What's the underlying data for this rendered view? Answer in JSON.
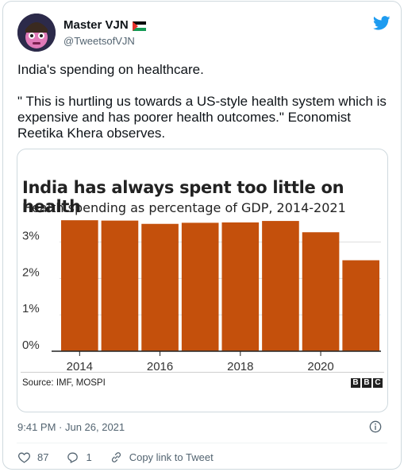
{
  "author": {
    "name": "Master VJN",
    "handle": "@TweetsofVJN"
  },
  "tweet": {
    "text": "India's spending on healthcare.\n\n\" This is hurtling us towards a US-style health system which is expensive and has poorer health outcomes.\" Economist Reetika Khera observes.",
    "timestamp": "9:41 PM · Jun 26, 2021"
  },
  "actions": {
    "likes": "87",
    "replies": "1",
    "copy_link": "Copy link to Tweet"
  },
  "chart_source": "Source: IMF, MOSPI",
  "chart_logo": [
    "B",
    "B",
    "C"
  ],
  "colors": {
    "bar": "#c4500c",
    "twitter_blue": "#1d9bf0"
  },
  "chart_data": {
    "type": "bar",
    "title": "India has always spent too little on health",
    "subtitle": "Health spending as percentage of GDP, 2014-2021",
    "categories": [
      "2014",
      "2015",
      "2016",
      "2017",
      "2018",
      "2019",
      "2020",
      "2021"
    ],
    "values": [
      3.6,
      3.59,
      3.5,
      3.53,
      3.54,
      3.58,
      3.27,
      2.5
    ],
    "y_ticks": [
      "0%",
      "1%",
      "2%",
      "3%"
    ],
    "x_ticks": [
      "2014",
      "2016",
      "2018",
      "2020"
    ],
    "ylim": [
      0,
      3.8
    ],
    "unit": "%"
  }
}
